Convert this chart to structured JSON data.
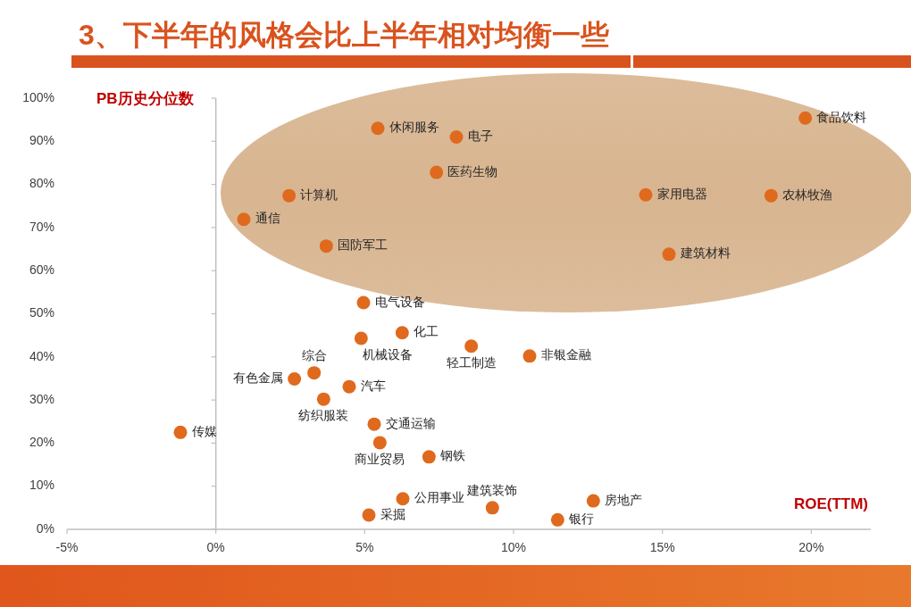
{
  "chart_data": {
    "type": "scatter",
    "title": "3、下半年的风格会比上半年相对均衡一些",
    "xlabel": "ROE(TTM)",
    "ylabel": "PB历史分位数",
    "xlim": [
      -5,
      22
    ],
    "ylim": [
      0,
      100
    ],
    "xticks": [
      {
        "value": -5,
        "label": "-5%"
      },
      {
        "value": 0,
        "label": "0%"
      },
      {
        "value": 5,
        "label": "5%"
      },
      {
        "value": 10,
        "label": "10%"
      },
      {
        "value": 15,
        "label": "15%"
      },
      {
        "value": 20,
        "label": "20%"
      }
    ],
    "yticks": [
      {
        "value": 0,
        "label": "0%"
      },
      {
        "value": 10,
        "label": "10%"
      },
      {
        "value": 20,
        "label": "20%"
      },
      {
        "value": 30,
        "label": "30%"
      },
      {
        "value": 40,
        "label": "40%"
      },
      {
        "value": 50,
        "label": "50%"
      },
      {
        "value": 60,
        "label": "60%"
      },
      {
        "value": 70,
        "label": "70%"
      },
      {
        "value": 80,
        "label": "80%"
      },
      {
        "value": 90,
        "label": "90%"
      },
      {
        "value": 100,
        "label": "100%"
      }
    ],
    "marker": "circle",
    "series": [
      {
        "name": "食品饮料",
        "color": "#df6a1d",
        "x": [
          19.8
        ],
        "values": [
          95.4
        ]
      },
      {
        "name": "休闲服务",
        "color": "#df6a1d",
        "x": [
          5.44
        ],
        "values": [
          93.0
        ]
      },
      {
        "name": "电子",
        "color": "#df6a1d",
        "x": [
          8.08
        ],
        "values": [
          91.0
        ]
      },
      {
        "name": "医药生物",
        "color": "#df6a1d",
        "x": [
          7.41
        ],
        "values": [
          82.8
        ]
      },
      {
        "name": "计算机",
        "color": "#df6a1d",
        "x": [
          2.46
        ],
        "values": [
          77.4
        ]
      },
      {
        "name": "家用电器",
        "color": "#df6a1d",
        "x": [
          14.44
        ],
        "values": [
          77.6
        ]
      },
      {
        "name": "农林牧渔",
        "color": "#df6a1d",
        "x": [
          18.65
        ],
        "values": [
          77.4
        ]
      },
      {
        "name": "通信",
        "color": "#df6a1d",
        "x": [
          0.94
        ],
        "values": [
          71.9
        ]
      },
      {
        "name": "国防军工",
        "color": "#df6a1d",
        "x": [
          3.71
        ],
        "values": [
          65.7
        ]
      },
      {
        "name": "建筑材料",
        "color": "#df6a1d",
        "x": [
          15.22
        ],
        "values": [
          63.8
        ]
      },
      {
        "name": "电气设备",
        "color": "#df6a1d",
        "x": [
          4.96
        ],
        "values": [
          52.6
        ]
      },
      {
        "name": "化工",
        "color": "#df6a1d",
        "x": [
          6.26
        ],
        "values": [
          45.6
        ]
      },
      {
        "name": "机械设备",
        "color": "#df6a1d",
        "x": [
          4.88
        ],
        "values": [
          44.3
        ]
      },
      {
        "name": "轻工制造",
        "color": "#df6a1d",
        "x": [
          8.58
        ],
        "values": [
          42.5
        ]
      },
      {
        "name": "非银金融",
        "color": "#df6a1d",
        "x": [
          10.54
        ],
        "values": [
          40.2
        ]
      },
      {
        "name": "综合",
        "color": "#df6a1d",
        "x": [
          3.3
        ],
        "values": [
          36.3
        ]
      },
      {
        "name": "有色金属",
        "color": "#df6a1d",
        "x": [
          2.64
        ],
        "values": [
          34.9
        ]
      },
      {
        "name": "汽车",
        "color": "#df6a1d",
        "x": [
          4.48
        ],
        "values": [
          33.1
        ]
      },
      {
        "name": "纺织服装",
        "color": "#df6a1d",
        "x": [
          3.62
        ],
        "values": [
          30.2
        ]
      },
      {
        "name": "交通运输",
        "color": "#df6a1d",
        "x": [
          5.32
        ],
        "values": [
          24.4
        ]
      },
      {
        "name": "传媒",
        "color": "#df6a1d",
        "x": [
          -1.19
        ],
        "values": [
          22.5
        ]
      },
      {
        "name": "商业贸易",
        "color": "#df6a1d",
        "x": [
          5.51
        ],
        "values": [
          20.1
        ]
      },
      {
        "name": "钢铁",
        "color": "#df6a1d",
        "x": [
          7.16
        ],
        "values": [
          16.8
        ]
      },
      {
        "name": "公用事业",
        "color": "#df6a1d",
        "x": [
          6.28
        ],
        "values": [
          7.1
        ]
      },
      {
        "name": "房地产",
        "color": "#df6a1d",
        "x": [
          12.68
        ],
        "values": [
          6.6
        ]
      },
      {
        "name": "建筑装饰",
        "color": "#df6a1d",
        "x": [
          9.29
        ],
        "values": [
          5.0
        ]
      },
      {
        "name": "采掘",
        "color": "#df6a1d",
        "x": [
          5.14
        ],
        "values": [
          3.3
        ]
      },
      {
        "name": "银行",
        "color": "#df6a1d",
        "x": [
          11.48
        ],
        "values": [
          2.2
        ]
      }
    ]
  }
}
